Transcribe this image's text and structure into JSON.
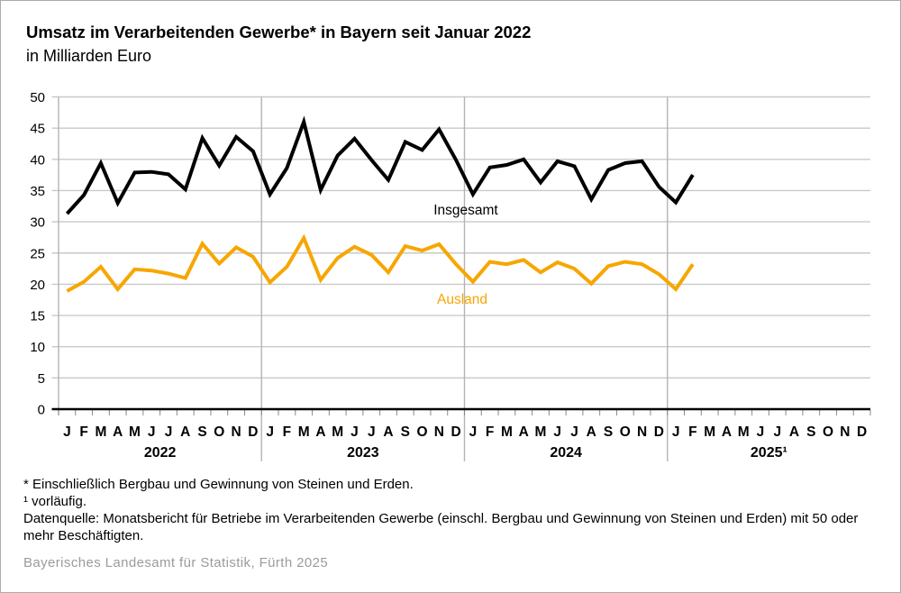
{
  "header": {
    "title": "Umsatz im Verarbeitenden Gewerbe* in Bayern seit Januar 2022",
    "subtitle": "in Milliarden Euro"
  },
  "footnotes": {
    "asterisk": "* Einschließlich Bergbau und Gewinnung von Steinen und Erden.",
    "preliminary": "¹ vorläufig.",
    "datasource": "Datenquelle: Monatsbericht für Betriebe im Verarbeitenden Gewerbe (einschl. Bergbau und Gewinnung von Steinen und Erden) mit 50 oder mehr Beschäftigten."
  },
  "footer": {
    "publisher": "Bayerisches Landesamt für Statistik, Fürth 2025"
  },
  "chart_data": {
    "type": "line",
    "title": "Umsatz im Verarbeitenden Gewerbe in Bayern seit Januar 2022",
    "ylabel": "Milliarden Euro",
    "ylim": [
      0,
      50
    ],
    "ytick_step": 5,
    "grid": true,
    "legend_position": "inline-labels",
    "years": [
      "2022",
      "2023",
      "2024",
      "2025¹"
    ],
    "month_letters": [
      "J",
      "F",
      "M",
      "A",
      "M",
      "J",
      "J",
      "A",
      "S",
      "O",
      "N",
      "D"
    ],
    "colors": {
      "insgesamt": "#000000",
      "ausland": "#F7A600",
      "grid": "#c9c9c9",
      "axis": "#000000"
    },
    "series": [
      {
        "name": "Insgesamt",
        "color": "#000000",
        "values": [
          31.3,
          34.3,
          39.4,
          33.0,
          37.9,
          38.0,
          37.6,
          35.2,
          43.4,
          39.0,
          43.6,
          41.3,
          34.4,
          38.6,
          46.0,
          35.1,
          40.6,
          43.3,
          39.9,
          36.7,
          42.8,
          41.5,
          44.8,
          39.9,
          34.4,
          38.7,
          39.1,
          40.0,
          36.3,
          39.7,
          38.9,
          33.6,
          38.3,
          39.4,
          39.7,
          35.6,
          33.1,
          37.5
        ]
      },
      {
        "name": "Ausland",
        "color": "#F7A600",
        "values": [
          18.9,
          20.4,
          22.8,
          19.2,
          22.4,
          22.2,
          21.7,
          21.0,
          26.5,
          23.3,
          25.9,
          24.4,
          20.3,
          22.8,
          27.4,
          20.7,
          24.2,
          26.0,
          24.7,
          21.9,
          26.1,
          25.4,
          26.4,
          23.2,
          20.4,
          23.6,
          23.2,
          23.9,
          21.9,
          23.5,
          22.5,
          20.1,
          22.9,
          23.6,
          23.2,
          21.6,
          19.2,
          23.2
        ]
      }
    ]
  }
}
